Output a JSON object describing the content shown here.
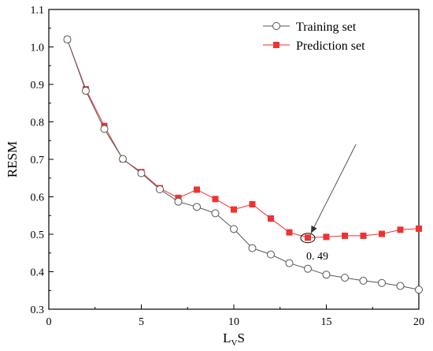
{
  "chart_data": {
    "type": "line",
    "title": "",
    "xlabel": {
      "main": "L",
      "sub": "V",
      "tail": "S"
    },
    "ylabel": "RESM",
    "xlim": [
      0,
      20
    ],
    "ylim": [
      0.3,
      1.1
    ],
    "xticks": [
      0,
      5,
      10,
      15,
      20
    ],
    "yticks": [
      0.3,
      0.4,
      0.5,
      0.6,
      0.7,
      0.8,
      0.9,
      1.0,
      1.1
    ],
    "ytick_labels": [
      "0.3",
      "0.4",
      "0.5",
      "0.6",
      "0.7",
      "0.8",
      "0.9",
      "1.0",
      "1.1"
    ],
    "grid": false,
    "legend_position": "top-right",
    "x": [
      1,
      2,
      3,
      4,
      5,
      6,
      7,
      8,
      9,
      10,
      11,
      12,
      13,
      14,
      15,
      16,
      17,
      18,
      19,
      20
    ],
    "series": [
      {
        "name": "Training set",
        "marker": "open-circle",
        "color": "#555555",
        "values": [
          1.02,
          0.883,
          0.781,
          0.701,
          0.663,
          0.62,
          0.587,
          0.573,
          0.556,
          0.514,
          0.463,
          0.446,
          0.423,
          0.408,
          0.392,
          0.384,
          0.376,
          0.37,
          0.362,
          0.352
        ]
      },
      {
        "name": "Prediction set",
        "marker": "filled-square",
        "color": "#ee3333",
        "values": [
          1.02,
          0.887,
          0.789,
          0.7,
          0.666,
          0.623,
          0.597,
          0.619,
          0.594,
          0.566,
          0.58,
          0.542,
          0.505,
          0.491,
          0.493,
          0.496,
          0.496,
          0.501,
          0.512,
          0.515
        ]
      }
    ],
    "annotation": {
      "text": "0. 49",
      "x": 14,
      "y": 0.49,
      "arrow_from": [
        16.6,
        0.74
      ]
    }
  }
}
